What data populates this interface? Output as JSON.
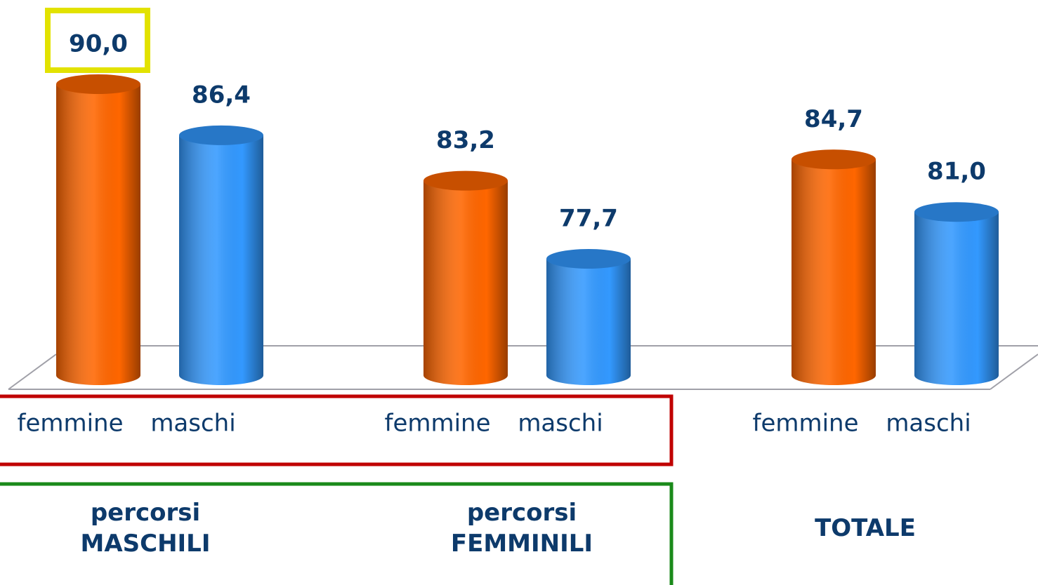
{
  "chart_data": {
    "type": "bar",
    "categories": [
      "percorsi MASCHILI",
      "percorsi FEMMINILI",
      "TOTALE"
    ],
    "series": [
      {
        "name": "femmine",
        "color": "#ff6600",
        "values": [
          90.0,
          83.2,
          84.7
        ],
        "value_labels": [
          "90,0",
          "83,2",
          "84,7"
        ]
      },
      {
        "name": "maschi",
        "color": "#3399ff",
        "values": [
          86.4,
          77.7,
          81.0
        ],
        "value_labels": [
          "86,4",
          "77,7",
          "81,0"
        ]
      }
    ],
    "ylim": [
      69.5,
      90
    ]
  }
}
